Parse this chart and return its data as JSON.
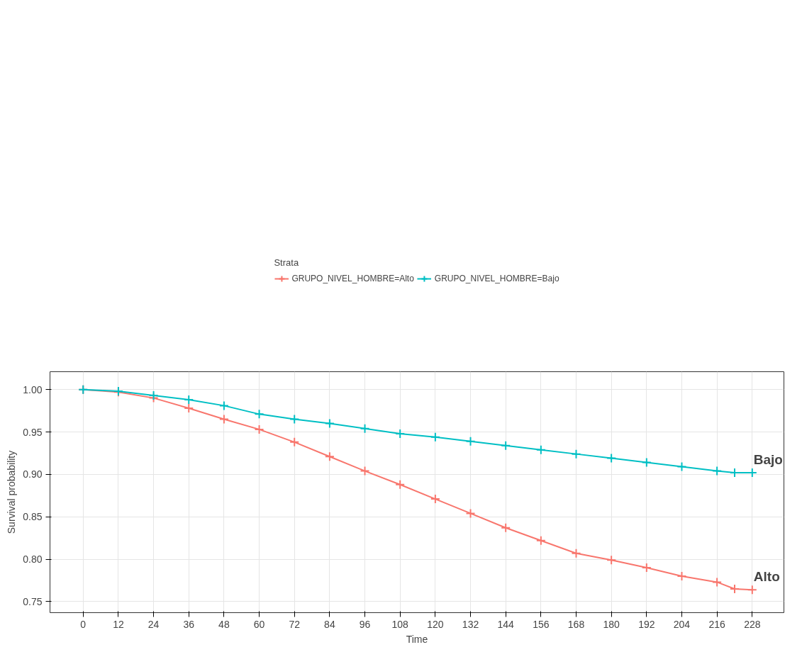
{
  "chart_data": {
    "type": "line",
    "xlabel": "Time",
    "ylabel": "Survival probability",
    "legend_title": "Strata",
    "legend": "top",
    "grid": true,
    "marker": "cross",
    "line_style": "solid",
    "xlim": [
      -11.3,
      238.8
    ],
    "ylim": [
      0.737,
      1.021
    ],
    "xticks": [
      0,
      12,
      24,
      36,
      48,
      60,
      72,
      84,
      96,
      108,
      120,
      132,
      144,
      156,
      168,
      180,
      192,
      204,
      216,
      228
    ],
    "yticks": [
      {
        "value": 0.75,
        "label": "0.75"
      },
      {
        "value": 0.8,
        "label": "0.80"
      },
      {
        "value": 0.85,
        "label": "0.85"
      },
      {
        "value": 0.9,
        "label": "0.90"
      },
      {
        "value": 0.95,
        "label": "0.95"
      },
      {
        "value": 1.0,
        "label": "1.00"
      }
    ],
    "x": [
      0,
      12,
      24,
      36,
      48,
      60,
      72,
      84,
      96,
      108,
      120,
      132,
      144,
      156,
      168,
      180,
      192,
      204,
      216,
      222,
      228
    ],
    "series": [
      {
        "name": "GRUPO_NIVEL_HOMBRE=Alto",
        "color": "#f8766d",
        "values": [
          1.0,
          0.997,
          0.99,
          0.978,
          0.965,
          0.953,
          0.938,
          0.921,
          0.904,
          0.888,
          0.871,
          0.854,
          0.837,
          0.822,
          0.807,
          0.799,
          0.79,
          0.78,
          0.773,
          0.765,
          0.764
        ]
      },
      {
        "name": "GRUPO_NIVEL_HOMBRE=Bajo",
        "color": "#00bfc4",
        "values": [
          1.0,
          0.998,
          0.993,
          0.988,
          0.981,
          0.971,
          0.965,
          0.96,
          0.954,
          0.948,
          0.944,
          0.939,
          0.934,
          0.929,
          0.924,
          0.919,
          0.914,
          0.909,
          0.904,
          0.902,
          0.902
        ]
      }
    ],
    "annotations": [
      {
        "text": "Bajo",
        "x": 228,
        "y": 0.902
      },
      {
        "text": "Alto",
        "x": 228,
        "y": 0.764
      }
    ]
  }
}
